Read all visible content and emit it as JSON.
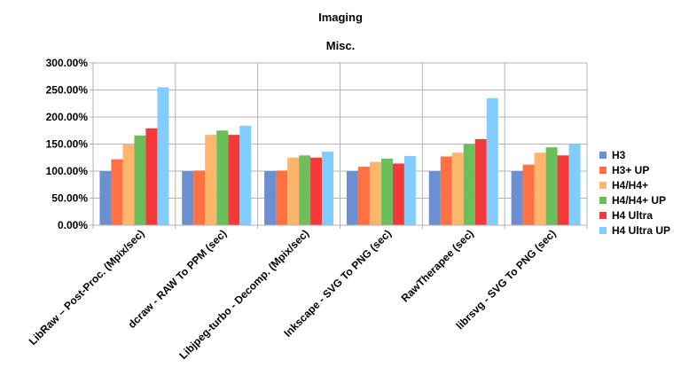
{
  "chart_data": {
    "type": "bar",
    "title": "Imaging",
    "subtitle": "Misc.",
    "xlabel": "",
    "ylabel": "",
    "ylim": [
      0,
      300
    ],
    "yticks": [
      "0.00%",
      "50.00%",
      "100.00%",
      "150.00%",
      "200.00%",
      "250.00%",
      "300.00%"
    ],
    "grid": true,
    "legend_position": "right",
    "categories": [
      "LibRaw – Post-Proc. (Mpix/sec)",
      "dcraw - RAW To PPM (sec)",
      "Libjpeg-turbo - Decomp. (Mpix/sec)",
      "Inkscape - SVG To PNG (sec)",
      "RawTherapee (sec)",
      "librsvg - SVG To PNG (sec)"
    ],
    "series": [
      {
        "name": "H3",
        "color": "#6b8fd0",
        "values": [
          100,
          100,
          100,
          100,
          100,
          100
        ]
      },
      {
        "name": "H3+ UP",
        "color": "#ff7043",
        "values": [
          122,
          101,
          101,
          108,
          127,
          112
        ]
      },
      {
        "name": "H4/H4+",
        "color": "#ffb66c",
        "values": [
          149,
          167,
          125,
          117,
          134,
          134
        ]
      },
      {
        "name": "H4/H4+ UP",
        "color": "#6abf5a",
        "values": [
          166,
          175,
          129,
          123,
          150,
          144
        ]
      },
      {
        "name": "H4 Ultra",
        "color": "#f23838",
        "values": [
          179,
          167,
          125,
          114,
          159,
          129
        ]
      },
      {
        "name": "H4 Ultra UP",
        "color": "#81cdff",
        "values": [
          255,
          184,
          136,
          128,
          235,
          150
        ]
      }
    ]
  }
}
